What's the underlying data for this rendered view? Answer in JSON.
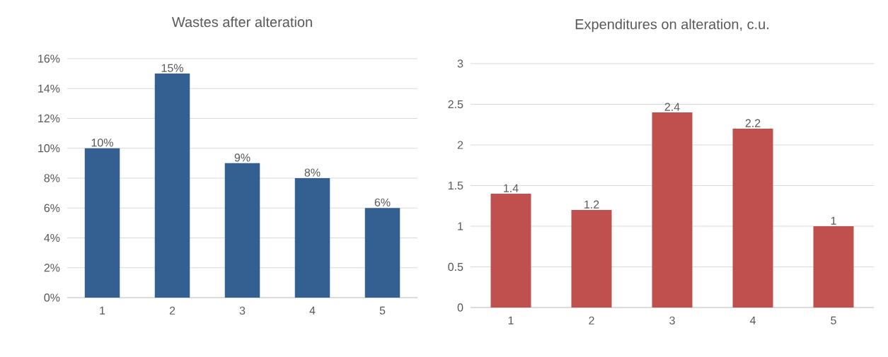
{
  "chart_data": [
    {
      "type": "bar",
      "title": "Wastes after alteration",
      "categories": [
        "1",
        "2",
        "3",
        "4",
        "5"
      ],
      "values": [
        10,
        15,
        9,
        8,
        6
      ],
      "color": "#335f91",
      "ylim": [
        0,
        16
      ],
      "yticks": [
        {
          "value": 0,
          "label": "0%"
        },
        {
          "value": 2,
          "label": "2%"
        },
        {
          "value": 4,
          "label": "4%"
        },
        {
          "value": 6,
          "label": "6%"
        },
        {
          "value": 8,
          "label": "8%"
        },
        {
          "value": 10,
          "label": "10%"
        },
        {
          "value": 12,
          "label": "12%"
        },
        {
          "value": 14,
          "label": "14%"
        },
        {
          "value": 16,
          "label": "16%"
        }
      ],
      "value_labels": [
        "10%",
        "15%",
        "9%",
        "8%",
        "6%"
      ],
      "grid": "y"
    },
    {
      "type": "bar",
      "title": "Expenditures on alteration, c.u.",
      "categories": [
        "1",
        "2",
        "3",
        "4",
        "5"
      ],
      "values": [
        1.4,
        1.2,
        2.4,
        2.2,
        1
      ],
      "color": "#c0504d",
      "ylim": [
        0,
        3
      ],
      "yticks": [
        0,
        0.5,
        1,
        1.5,
        2,
        2.5,
        3
      ],
      "data_labels": true,
      "grid": "y"
    }
  ]
}
